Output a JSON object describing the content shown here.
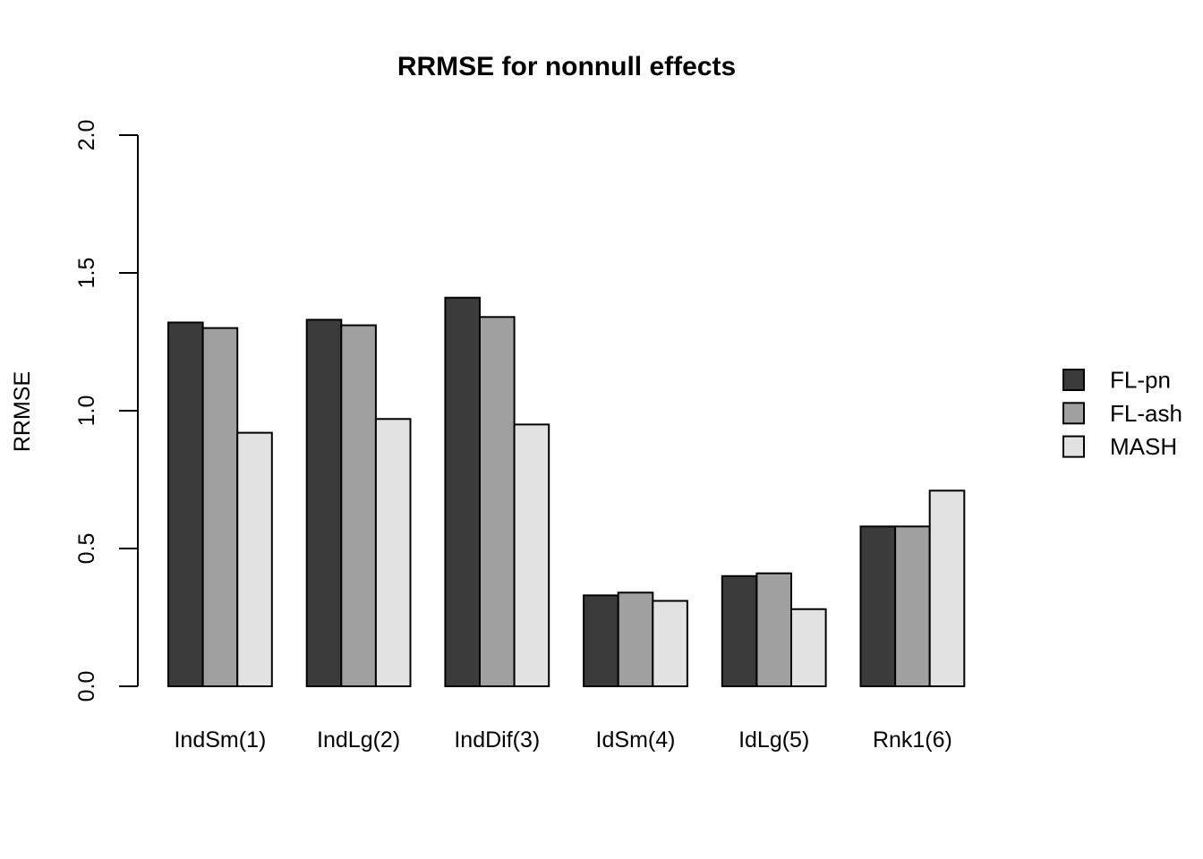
{
  "page": {
    "background": "#ffffff",
    "text_color": "#000000"
  },
  "chart_data": {
    "type": "bar",
    "title": "RRMSE for nonnull effects",
    "ylabel": "RRMSE",
    "xlabel": "",
    "categories": [
      "IndSm(1)",
      "IndLg(2)",
      "IndDif(3)",
      "IdSm(4)",
      "IdLg(5)",
      "Rnk1(6)"
    ],
    "series": [
      {
        "name": "FL-pn",
        "color": "#3b3b3b",
        "values": [
          1.32,
          1.33,
          1.41,
          0.33,
          0.4,
          0.58
        ]
      },
      {
        "name": "FL-ash",
        "color": "#a0a0a0",
        "values": [
          1.3,
          1.31,
          1.34,
          0.34,
          0.41,
          0.58
        ]
      },
      {
        "name": "MASH",
        "color": "#e2e2e2",
        "values": [
          0.92,
          0.97,
          0.95,
          0.31,
          0.28,
          0.71
        ]
      }
    ],
    "ylim": [
      0,
      2
    ],
    "yticks": [
      "0.0",
      "0.5",
      "1.0",
      "1.5",
      "2.0"
    ],
    "ytick_labels_rotated": true,
    "grid": false,
    "legend_position": "right",
    "bar_border_color": "#000000",
    "axis_color": "#000000"
  }
}
